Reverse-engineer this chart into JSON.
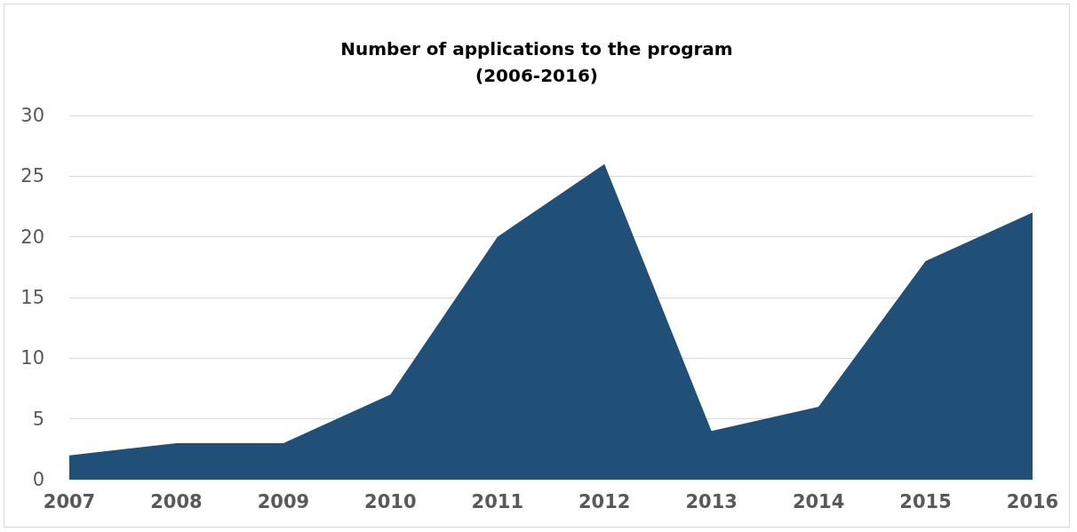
{
  "chart_data": {
    "type": "area",
    "title": "Number of applications to the program\n(2006-2016)",
    "categories": [
      "2007",
      "2008",
      "2009",
      "2010",
      "2011",
      "2012",
      "2013",
      "2014",
      "2015",
      "2016"
    ],
    "values": [
      2,
      3,
      3,
      7,
      20,
      26,
      4,
      6,
      18,
      22
    ],
    "color": "#204f78",
    "ylim": [
      0,
      30
    ],
    "yticks": [
      0,
      5,
      10,
      15,
      20,
      25,
      30
    ],
    "grid": "y",
    "marker": "none"
  }
}
